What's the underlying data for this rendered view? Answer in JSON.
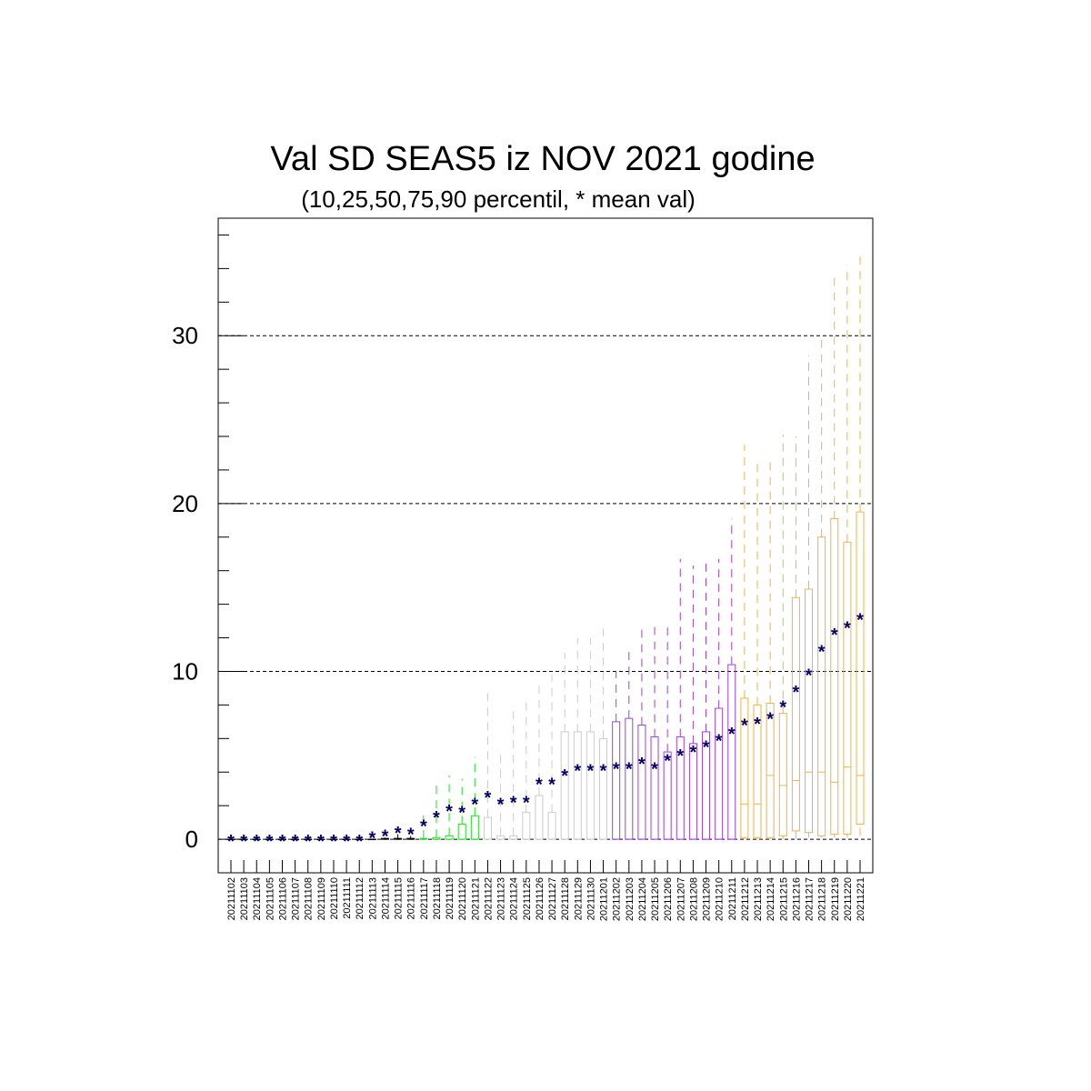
{
  "chart_data": {
    "type": "boxplot",
    "title": "Val SD SEAS5 iz NOV 2021 godine",
    "subtitle": "(10,25,50,75,90 percentil, * mean val)",
    "ylim": [
      -2,
      37
    ],
    "yticks": [
      0,
      10,
      20,
      30
    ],
    "gridlines": [
      0,
      10,
      20,
      30
    ],
    "categories": [
      "20211102",
      "20211103",
      "20211104",
      "20211105",
      "20211106",
      "20211107",
      "20211108",
      "20211109",
      "20211110",
      "20211111",
      "20211112",
      "20211113",
      "20211114",
      "20211115",
      "20211116",
      "20211117",
      "20211118",
      "20211119",
      "20211120",
      "20211121",
      "20211122",
      "20211123",
      "20211124",
      "20211125",
      "20211126",
      "20211127",
      "20211128",
      "20211129",
      "20211130",
      "20211201",
      "20211202",
      "20211203",
      "20211204",
      "20211205",
      "20211206",
      "20211207",
      "20211208",
      "20211209",
      "20211210",
      "20211211",
      "20211212",
      "20211213",
      "20211214",
      "20211215",
      "20211216",
      "20211217",
      "20211218",
      "20211219",
      "20211220",
      "20211221"
    ],
    "colors": {
      "black": "#000000",
      "green": "#22dd22",
      "gray": "#cccccc",
      "purple": "#a040e0",
      "orange": "#f5b040",
      "mean": "#000066"
    },
    "series_colors": [
      "black",
      "black",
      "black",
      "black",
      "black",
      "black",
      "black",
      "black",
      "black",
      "black",
      "black",
      "black",
      "black",
      "black",
      "black",
      "green",
      "green",
      "green",
      "green",
      "green",
      "gray",
      "gray",
      "gray",
      "gray",
      "gray",
      "gray",
      "gray",
      "gray",
      "gray",
      "gray",
      "purple",
      "purple",
      "purple",
      "purple",
      "purple",
      "purple",
      "purple",
      "purple",
      "purple",
      "purple",
      "orange",
      "orange",
      "orange",
      "orange",
      "orange",
      "orange",
      "orange",
      "orange",
      "orange",
      "orange"
    ],
    "p10": [
      0,
      0,
      0,
      0,
      0,
      0,
      0,
      0,
      0,
      0,
      0,
      0,
      0,
      0,
      0,
      0,
      0,
      0,
      0,
      0,
      0,
      0,
      0,
      0,
      0,
      0,
      0,
      0,
      0,
      0,
      0,
      0,
      0,
      0,
      0,
      0,
      0,
      0,
      0,
      0,
      0,
      0,
      0,
      0,
      0,
      0.1,
      0.1,
      0.1,
      0.1,
      0.2
    ],
    "p25": [
      0,
      0,
      0,
      0,
      0,
      0,
      0,
      0,
      0,
      0,
      0,
      0,
      0,
      0,
      0,
      0,
      0,
      0,
      0,
      0,
      0,
      0,
      0,
      0,
      0,
      0,
      0,
      0,
      0,
      0,
      0,
      0,
      0,
      0,
      0,
      0,
      0,
      0,
      0,
      0,
      0.1,
      0.1,
      0.1,
      0.2,
      0.5,
      0.4,
      0.2,
      0.3,
      0.3,
      0.9
    ],
    "p50": [
      0,
      0,
      0,
      0,
      0,
      0,
      0,
      0,
      0,
      0,
      0,
      0,
      0,
      0,
      0,
      0,
      0,
      0,
      0,
      0,
      0,
      0,
      0,
      0,
      0,
      0,
      0,
      0,
      0,
      0,
      0,
      0,
      0,
      0,
      0,
      0,
      0,
      0,
      0,
      0,
      2.1,
      2.1,
      3.8,
      3.2,
      3.5,
      4.0,
      4.0,
      3.4,
      4.3,
      3.8
    ],
    "p75": [
      0,
      0,
      0,
      0,
      0,
      0,
      0,
      0,
      0,
      0,
      0,
      0,
      0.05,
      0.05,
      0.05,
      0.05,
      0.1,
      0.2,
      0.9,
      1.4,
      1.3,
      0.2,
      0.2,
      1.6,
      2.6,
      1.6,
      6.4,
      6.4,
      6.4,
      6.0,
      7.0,
      7.2,
      6.8,
      6.1,
      5.2,
      6.1,
      5.7,
      6.4,
      7.8,
      10.4,
      8.4,
      8.0,
      8.1,
      7.5,
      14.4,
      14.9,
      18.0,
      19.1,
      17.7,
      19.5
    ],
    "p90": [
      0,
      0,
      0,
      0,
      0,
      0,
      0,
      0,
      0,
      0,
      0,
      0,
      0.1,
      0.3,
      0.2,
      1.7,
      3.3,
      3.8,
      3.6,
      4.9,
      9.0,
      5.3,
      7.7,
      8.4,
      9.2,
      9.8,
      11.1,
      12.0,
      12.0,
      12.9,
      10.0,
      11.4,
      12.6,
      12.8,
      12.7,
      16.7,
      16.3,
      16.7,
      16.7,
      19.1,
      23.5,
      22.5,
      22.8,
      24.1,
      24.0,
      28.8,
      29.8,
      33.7,
      34.2,
      34.9
    ],
    "mean": [
      0,
      0,
      0,
      0,
      0,
      0,
      0,
      0,
      0,
      0,
      0,
      0.2,
      0.3,
      0.5,
      0.4,
      0.9,
      1.4,
      1.8,
      1.7,
      2.2,
      2.6,
      2.2,
      2.3,
      2.3,
      3.4,
      3.4,
      3.9,
      4.2,
      4.2,
      4.2,
      4.3,
      4.3,
      4.6,
      4.3,
      4.8,
      5.1,
      5.3,
      5.6,
      6.0,
      6.4,
      6.9,
      7.0,
      7.3,
      8.0,
      8.9,
      9.9,
      11.3,
      12.3,
      12.7,
      13.2
    ]
  }
}
